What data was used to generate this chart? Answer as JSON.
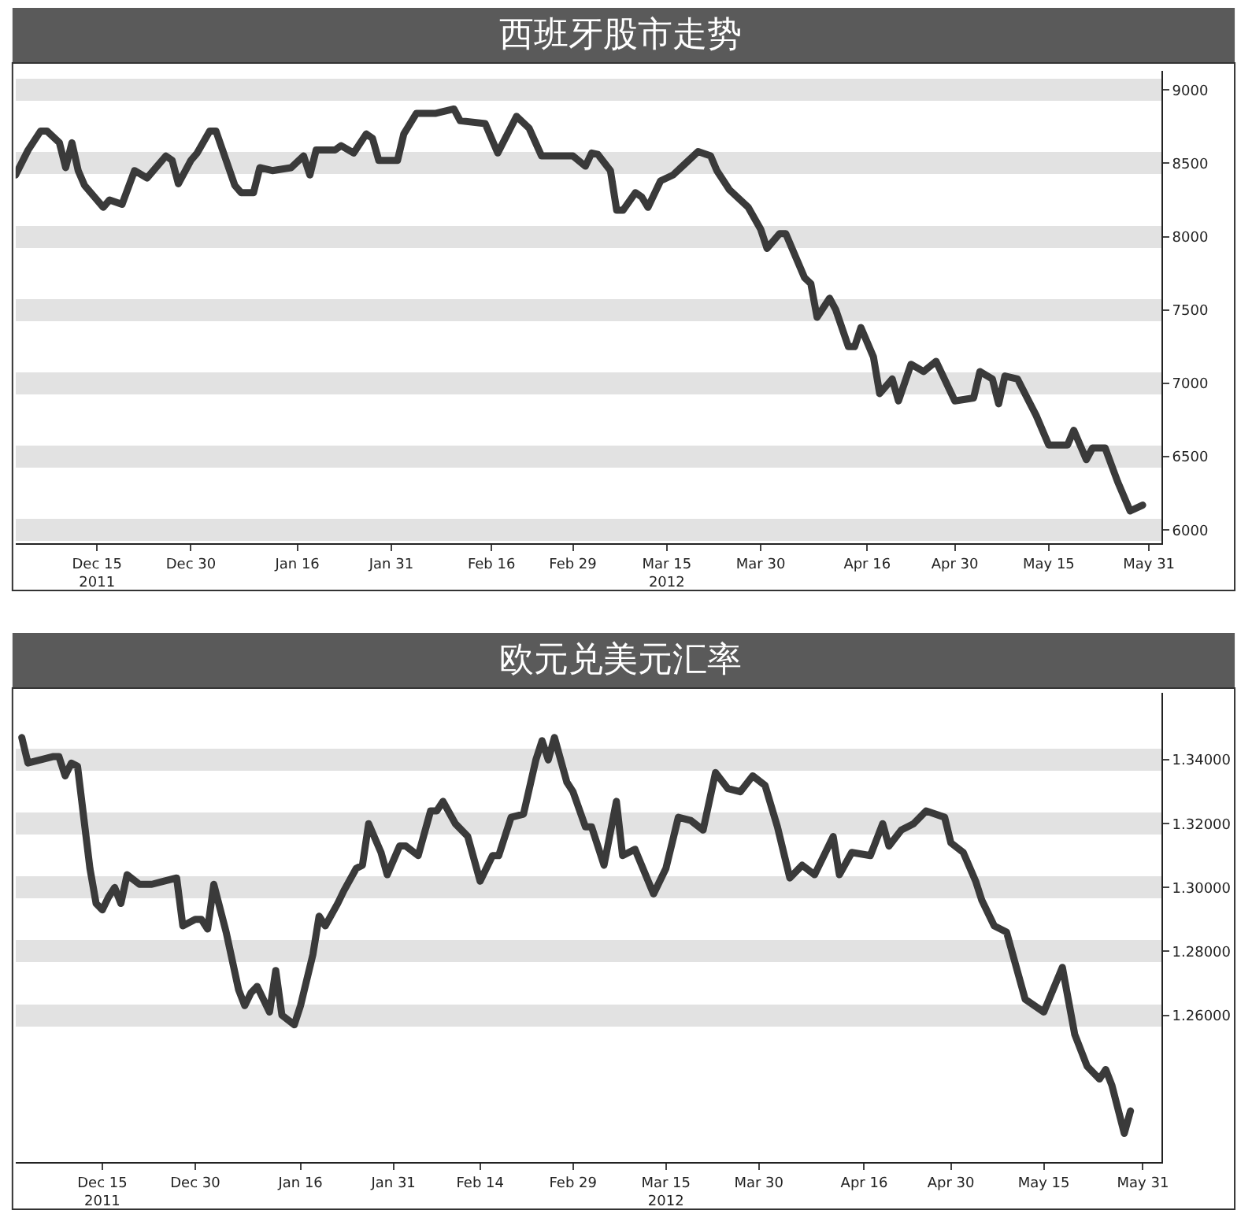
{
  "chart_data": [
    {
      "type": "line",
      "title": "西班牙股市走势",
      "x": [
        "2011-12-02",
        "2011-12-04",
        "2011-12-06",
        "2011-12-07",
        "2011-12-09",
        "2011-12-10",
        "2011-12-11",
        "2011-12-12",
        "2011-12-13",
        "2011-12-16",
        "2011-12-17",
        "2011-12-19",
        "2011-12-21",
        "2011-12-23",
        "2011-12-26",
        "2011-12-27",
        "2011-12-28",
        "2011-12-30",
        "2011-12-31",
        "2012-01-02",
        "2012-01-03",
        "2012-01-06",
        "2012-01-07",
        "2012-01-09",
        "2012-01-10",
        "2012-01-12",
        "2012-01-15",
        "2012-01-17",
        "2012-01-18",
        "2012-01-19",
        "2012-01-22",
        "2012-01-23",
        "2012-01-25",
        "2012-01-27",
        "2012-01-28",
        "2012-01-29",
        "2012-02-01",
        "2012-02-02",
        "2012-02-04",
        "2012-02-07",
        "2012-02-10",
        "2012-02-11",
        "2012-02-15",
        "2012-02-17",
        "2012-02-20",
        "2012-02-22",
        "2012-02-24",
        "2012-02-29",
        "2012-03-02",
        "2012-03-03",
        "2012-03-04",
        "2012-03-06",
        "2012-03-07",
        "2012-03-08",
        "2012-03-10",
        "2012-03-11",
        "2012-03-12",
        "2012-03-14",
        "2012-03-16",
        "2012-03-18",
        "2012-03-20",
        "2012-03-22",
        "2012-03-23",
        "2012-03-25",
        "2012-03-28",
        "2012-03-30",
        "2012-03-31",
        "2012-04-02",
        "2012-04-03",
        "2012-04-06",
        "2012-04-07",
        "2012-04-08",
        "2012-04-10",
        "2012-04-11",
        "2012-04-13",
        "2012-04-14",
        "2012-04-15",
        "2012-04-17",
        "2012-04-18",
        "2012-04-20",
        "2012-04-21",
        "2012-04-23",
        "2012-04-25",
        "2012-04-27",
        "2012-04-30",
        "2012-05-03",
        "2012-05-04",
        "2012-05-06",
        "2012-05-07",
        "2012-05-08",
        "2012-05-10",
        "2012-05-13",
        "2012-05-15",
        "2012-05-17",
        "2012-05-18",
        "2012-05-19",
        "2012-05-21",
        "2012-05-22",
        "2012-05-24",
        "2012-05-26",
        "2012-05-28",
        "2012-05-30"
      ],
      "series": [
        {
          "color": "#3a3a3a",
          "values": [
            8420,
            8590,
            8720,
            8720,
            8640,
            8470,
            8640,
            8450,
            8350,
            8200,
            8250,
            8220,
            8450,
            8400,
            8550,
            8520,
            8360,
            8520,
            8570,
            8720,
            8720,
            8350,
            8300,
            8300,
            8470,
            8450,
            8470,
            8550,
            8420,
            8590,
            8590,
            8620,
            8570,
            8700,
            8670,
            8520,
            8520,
            8700,
            8840,
            8840,
            8870,
            8790,
            8770,
            8570,
            8820,
            8740,
            8550,
            8550,
            8480,
            8570,
            8560,
            8450,
            8180,
            8180,
            8300,
            8270,
            8200,
            8380,
            8420,
            8500,
            8580,
            8550,
            8450,
            8320,
            8200,
            8050,
            7920,
            8020,
            8020,
            7720,
            7680,
            7450,
            7580,
            7500,
            7250,
            7250,
            7380,
            7180,
            6930,
            7030,
            6880,
            7130,
            7080,
            7150,
            6880,
            6900,
            7080,
            7030,
            6860,
            7050,
            7030,
            6780,
            6580,
            6580,
            6580,
            6680,
            6480,
            6560,
            6560,
            6330,
            6130,
            6170
          ]
        }
      ],
      "xlim": [
        "2011-12-02",
        "2012-06-02"
      ],
      "xticks": [
        {
          "value": "2011-12-15",
          "label": "Dec 15\n2011"
        },
        {
          "value": "2011-12-30",
          "label": "Dec 30"
        },
        {
          "value": "2012-01-16",
          "label": "Jan 16"
        },
        {
          "value": "2012-01-31",
          "label": "Jan 31"
        },
        {
          "value": "2012-02-16",
          "label": "Feb 16"
        },
        {
          "value": "2012-02-29",
          "label": "Feb 29"
        },
        {
          "value": "2012-03-15",
          "label": "Mar 15\n2012"
        },
        {
          "value": "2012-03-30",
          "label": "Mar 30"
        },
        {
          "value": "2012-04-16",
          "label": "Apr 16"
        },
        {
          "value": "2012-04-30",
          "label": "Apr 30"
        },
        {
          "value": "2012-05-15",
          "label": "May 15"
        },
        {
          "value": "2012-05-31",
          "label": "May 31"
        }
      ],
      "ylim": [
        5910,
        9130
      ],
      "yticks": [
        6000,
        6500,
        7000,
        7500,
        8000,
        8500,
        9000
      ],
      "grid": "y",
      "marker": "none",
      "line_style": "solid"
    },
    {
      "type": "line",
      "title": "欧元兑美元汇率",
      "x": [
        "2011-12-02",
        "2011-12-03",
        "2011-12-05",
        "2011-12-07",
        "2011-12-08",
        "2011-12-09",
        "2011-12-10",
        "2011-12-11",
        "2011-12-12",
        "2011-12-13",
        "2011-12-14",
        "2011-12-15",
        "2011-12-16",
        "2011-12-17",
        "2011-12-18",
        "2011-12-19",
        "2011-12-21",
        "2011-12-23",
        "2011-12-25",
        "2011-12-27",
        "2011-12-28",
        "2011-12-30",
        "2011-12-31",
        "2012-01-01",
        "2012-01-02",
        "2012-01-04",
        "2012-01-06",
        "2012-01-07",
        "2012-01-08",
        "2012-01-09",
        "2012-01-11",
        "2012-01-12",
        "2012-01-13",
        "2012-01-15",
        "2012-01-16",
        "2012-01-18",
        "2012-01-19",
        "2012-01-20",
        "2012-01-22",
        "2012-01-23",
        "2012-01-25",
        "2012-01-26",
        "2012-01-27",
        "2012-01-29",
        "2012-01-30",
        "2012-02-01",
        "2012-02-02",
        "2012-02-04",
        "2012-02-06",
        "2012-02-07",
        "2012-02-08",
        "2012-02-10",
        "2012-02-12",
        "2012-02-14",
        "2012-02-16",
        "2012-02-17",
        "2012-02-19",
        "2012-02-21",
        "2012-02-23",
        "2012-02-24",
        "2012-02-25",
        "2012-02-26",
        "2012-02-28",
        "2012-02-29",
        "2012-03-02",
        "2012-03-03",
        "2012-03-05",
        "2012-03-07",
        "2012-03-08",
        "2012-03-10",
        "2012-03-13",
        "2012-03-15",
        "2012-03-17",
        "2012-03-19",
        "2012-03-21",
        "2012-03-23",
        "2012-03-25",
        "2012-03-27",
        "2012-03-29",
        "2012-03-31",
        "2012-04-02",
        "2012-04-04",
        "2012-04-06",
        "2012-04-08",
        "2012-04-11",
        "2012-04-12",
        "2012-04-14",
        "2012-04-17",
        "2012-04-19",
        "2012-04-20",
        "2012-04-22",
        "2012-04-24",
        "2012-04-26",
        "2012-04-29",
        "2012-04-30",
        "2012-05-02",
        "2012-05-04",
        "2012-05-05",
        "2012-05-07",
        "2012-05-09",
        "2012-05-12",
        "2012-05-15",
        "2012-05-18",
        "2012-05-20",
        "2012-05-22",
        "2012-05-24",
        "2012-05-25",
        "2012-05-26",
        "2012-05-28",
        "2012-05-29"
      ],
      "series": [
        {
          "color": "#3a3a3a",
          "values": [
            1.347,
            1.339,
            1.34,
            1.341,
            1.341,
            1.335,
            1.339,
            1.338,
            1.322,
            1.306,
            1.295,
            1.293,
            1.297,
            1.3,
            1.295,
            1.304,
            1.301,
            1.301,
            1.302,
            1.303,
            1.288,
            1.29,
            1.29,
            1.287,
            1.301,
            1.286,
            1.268,
            1.263,
            1.267,
            1.269,
            1.261,
            1.274,
            1.26,
            1.257,
            1.263,
            1.279,
            1.291,
            1.288,
            1.295,
            1.299,
            1.306,
            1.307,
            1.32,
            1.311,
            1.304,
            1.313,
            1.313,
            1.31,
            1.324,
            1.324,
            1.327,
            1.32,
            1.316,
            1.302,
            1.31,
            1.31,
            1.322,
            1.323,
            1.34,
            1.346,
            1.34,
            1.347,
            1.333,
            1.33,
            1.319,
            1.319,
            1.307,
            1.327,
            1.31,
            1.312,
            1.298,
            1.306,
            1.322,
            1.321,
            1.318,
            1.336,
            1.331,
            1.33,
            1.335,
            1.332,
            1.319,
            1.303,
            1.307,
            1.304,
            1.316,
            1.304,
            1.311,
            1.31,
            1.32,
            1.313,
            1.318,
            1.32,
            1.324,
            1.322,
            1.314,
            1.311,
            1.302,
            1.296,
            1.288,
            1.286,
            1.265,
            1.261,
            1.275,
            1.254,
            1.244,
            1.24,
            1.243,
            1.238,
            1.223,
            1.23
          ]
        }
      ],
      "xlim": [
        "2011-12-01",
        "2012-06-03"
      ],
      "xticks": [
        {
          "value": "2011-12-15",
          "label": "Dec 15\n2011"
        },
        {
          "value": "2011-12-30",
          "label": "Dec 30"
        },
        {
          "value": "2012-01-16",
          "label": "Jan 16"
        },
        {
          "value": "2012-01-31",
          "label": "Jan 31"
        },
        {
          "value": "2012-02-14",
          "label": "Feb 14"
        },
        {
          "value": "2012-02-29",
          "label": "Feb 29"
        },
        {
          "value": "2012-03-15",
          "label": "Mar 15\n2012"
        },
        {
          "value": "2012-03-30",
          "label": "Mar 30"
        },
        {
          "value": "2012-04-16",
          "label": "Apr 16"
        },
        {
          "value": "2012-04-30",
          "label": "Apr 30"
        },
        {
          "value": "2012-05-15",
          "label": "May 15"
        },
        {
          "value": "2012-05-31",
          "label": "May 31"
        }
      ],
      "ylim": [
        1.214,
        1.361
      ],
      "yticks": [
        {
          "value": 1.26,
          "label": "1.26000"
        },
        {
          "value": 1.28,
          "label": "1.28000"
        },
        {
          "value": 1.3,
          "label": "1.30000"
        },
        {
          "value": 1.32,
          "label": "1.32000"
        },
        {
          "value": 1.34,
          "label": "1.34000"
        }
      ],
      "grid": "y",
      "marker": "none",
      "line_style": "solid"
    }
  ]
}
